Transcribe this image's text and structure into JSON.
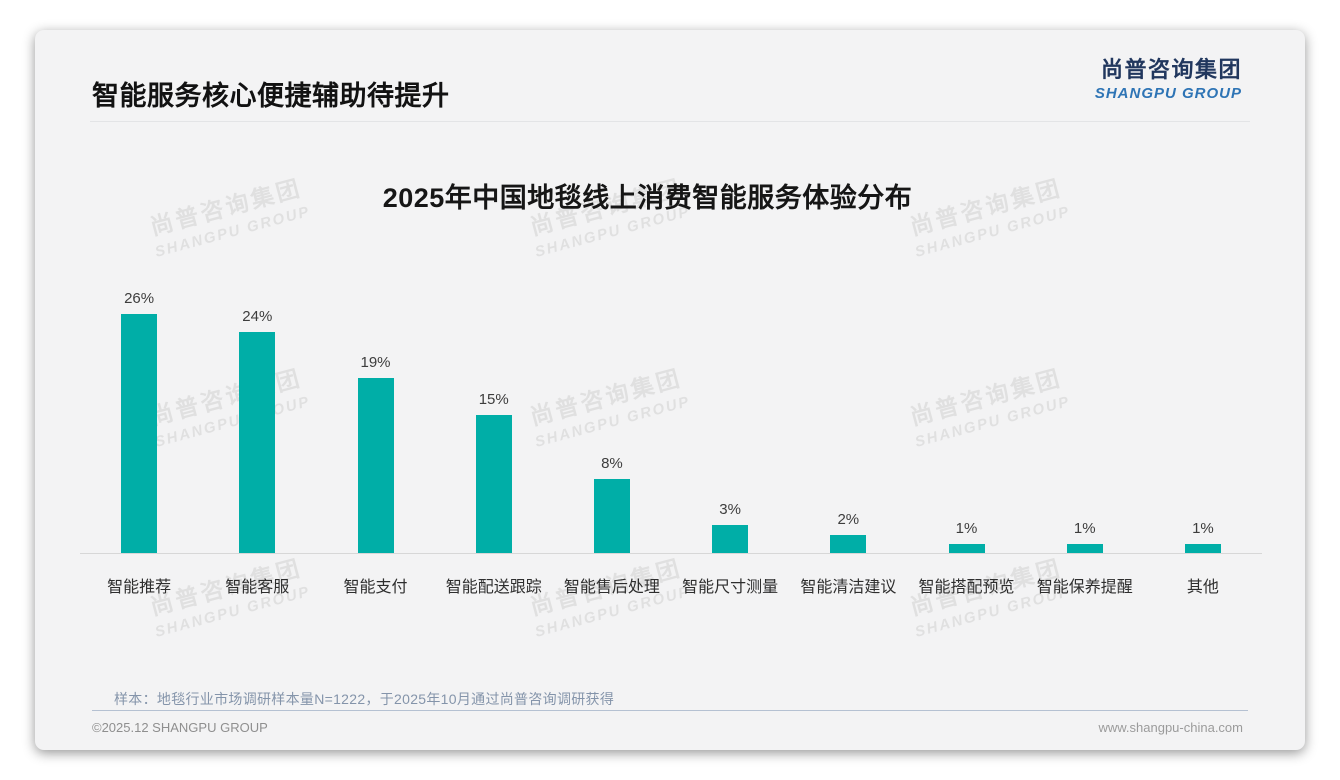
{
  "header": {
    "title": "智能服务核心便捷辅助待提升"
  },
  "logo": {
    "cn": "尚普咨询集团",
    "en": "SHANGPU GROUP"
  },
  "watermark": {
    "cn": "尚普咨询集团",
    "en": "SHANGPU GROUP"
  },
  "chart_data": {
    "type": "bar",
    "title": "2025年中国地毯线上消费智能服务体验分布",
    "categories": [
      "智能推荐",
      "智能客服",
      "智能支付",
      "智能配送跟踪",
      "智能售后处理",
      "智能尺寸测量",
      "智能清洁建议",
      "智能搭配预览",
      "智能保养提醒",
      "其他"
    ],
    "values": [
      26,
      24,
      19,
      15,
      8,
      3,
      2,
      1,
      1,
      1
    ],
    "labels": [
      "26%",
      "24%",
      "19%",
      "15%",
      "8%",
      "3%",
      "2%",
      "1%",
      "1%",
      "1%"
    ],
    "unit": "%",
    "bar_color": "#00AEA7",
    "ylim": [
      0,
      28
    ],
    "grid": false,
    "legend": false,
    "xlabel": "",
    "ylabel": ""
  },
  "footnote": {
    "text": "样本：地毯行业市场调研样本量N=1222，于2025年10月通过尚普咨询调研获得"
  },
  "footer": {
    "copyright": "©2025.12 SHANGPU GROUP",
    "website": "www.shangpu-china.com"
  }
}
